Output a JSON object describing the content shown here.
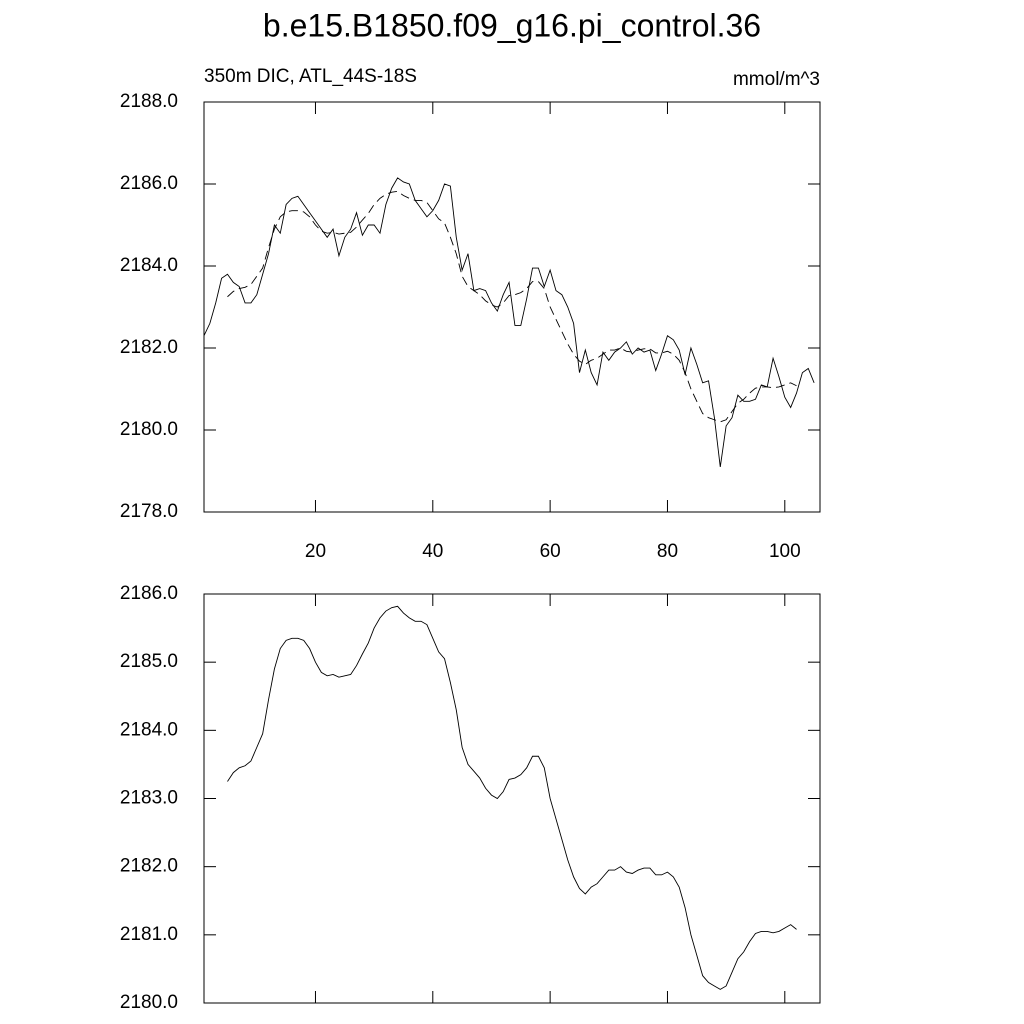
{
  "chart_data": [
    {
      "type": "line",
      "title": "b.e15.B1850.f09_g16.pi_control.36",
      "subtitle": "350m DIC, ATL_44S-18S",
      "units": "mmol/m^3",
      "xlim": [
        1,
        106
      ],
      "xticks": [
        20,
        40,
        60,
        80,
        100
      ],
      "xtick_labels_visible": true,
      "ylim": [
        2178,
        2188
      ],
      "yticks": [
        {
          "value": 2178,
          "label": "2178.0"
        },
        {
          "value": 2180,
          "label": "2180.0"
        },
        {
          "value": 2182,
          "label": "2182.0"
        },
        {
          "value": 2184,
          "label": "2184.0"
        },
        {
          "value": 2186,
          "label": "2186.0"
        },
        {
          "value": 2188,
          "label": "2188.0"
        }
      ],
      "series": [
        {
          "color": "#000000",
          "line_style": "solid",
          "x": [
            1,
            2,
            3,
            4,
            5,
            6,
            7,
            8,
            9,
            10,
            11,
            12,
            13,
            14,
            15,
            16,
            17,
            18,
            19,
            20,
            21,
            22,
            23,
            24,
            25,
            26,
            27,
            28,
            29,
            30,
            31,
            32,
            33,
            34,
            35,
            36,
            37,
            38,
            39,
            40,
            41,
            42,
            43,
            44,
            45,
            46,
            47,
            48,
            49,
            50,
            51,
            52,
            53,
            54,
            55,
            56,
            57,
            58,
            59,
            60,
            61,
            62,
            63,
            64,
            65,
            66,
            67,
            68,
            69,
            70,
            71,
            72,
            73,
            74,
            75,
            76,
            77,
            78,
            79,
            80,
            81,
            82,
            83,
            84,
            85,
            86,
            87,
            88,
            89,
            90,
            91,
            92,
            93,
            94,
            95,
            96,
            97,
            98,
            99,
            100,
            101,
            102,
            103,
            104,
            105
          ],
          "values": [
            2182.3,
            2182.6,
            2183.1,
            2183.7,
            2183.8,
            2183.6,
            2183.5,
            2183.1,
            2183.1,
            2183.3,
            2183.8,
            2184.3,
            2185.0,
            2184.8,
            2185.5,
            2185.65,
            2185.7,
            2185.5,
            2185.3,
            2185.1,
            2184.9,
            2184.7,
            2184.9,
            2184.25,
            2184.7,
            2184.9,
            2185.3,
            2184.75,
            2185.0,
            2185.0,
            2184.8,
            2185.5,
            2185.9,
            2186.15,
            2186.05,
            2186.0,
            2185.6,
            2185.4,
            2185.2,
            2185.35,
            2185.6,
            2186.0,
            2185.95,
            2184.7,
            2183.9,
            2184.3,
            2183.4,
            2183.45,
            2183.4,
            2183.1,
            2182.9,
            2183.3,
            2183.6,
            2182.55,
            2182.55,
            2183.2,
            2183.95,
            2183.95,
            2183.5,
            2183.9,
            2183.4,
            2183.3,
            2183.0,
            2182.6,
            2181.4,
            2181.95,
            2181.4,
            2181.1,
            2181.9,
            2181.7,
            2181.9,
            2182.0,
            2182.15,
            2181.85,
            2182.0,
            2181.9,
            2181.95,
            2181.45,
            2181.85,
            2182.3,
            2182.2,
            2181.95,
            2181.35,
            2182.0,
            2181.6,
            2181.15,
            2181.2,
            2180.3,
            2179.1,
            2180.1,
            2180.3,
            2180.85,
            2180.7,
            2180.7,
            2180.75,
            2181.1,
            2181.05,
            2181.75,
            2181.3,
            2180.8,
            2180.55,
            2180.9,
            2181.4,
            2181.5,
            2181.15
          ]
        },
        {
          "color": "#000000",
          "line_style": "dashed",
          "x": [
            5,
            6,
            7,
            8,
            9,
            10,
            11,
            12,
            13,
            14,
            15,
            16,
            17,
            18,
            19,
            20,
            21,
            22,
            23,
            24,
            25,
            26,
            27,
            28,
            29,
            30,
            31,
            32,
            33,
            34,
            35,
            36,
            37,
            38,
            39,
            40,
            41,
            42,
            43,
            44,
            45,
            46,
            47,
            48,
            49,
            50,
            51,
            52,
            53,
            54,
            55,
            56,
            57,
            58,
            59,
            60,
            61,
            62,
            63,
            64,
            65,
            66,
            67,
            68,
            69,
            70,
            71,
            72,
            73,
            74,
            75,
            76,
            77,
            78,
            79,
            80,
            81,
            82,
            83,
            84,
            85,
            86,
            87,
            88,
            89,
            90,
            91,
            92,
            93,
            94,
            95,
            96,
            97,
            98,
            99,
            100,
            101,
            102
          ],
          "values": [
            2183.25,
            2183.38,
            2183.45,
            2183.48,
            2183.55,
            2183.75,
            2183.95,
            2184.45,
            2184.9,
            2185.2,
            2185.32,
            2185.35,
            2185.35,
            2185.32,
            2185.2,
            2185.0,
            2184.85,
            2184.8,
            2184.82,
            2184.78,
            2184.8,
            2184.82,
            2184.95,
            2185.12,
            2185.28,
            2185.5,
            2185.65,
            2185.75,
            2185.8,
            2185.82,
            2185.72,
            2185.65,
            2185.6,
            2185.6,
            2185.55,
            2185.35,
            2185.15,
            2185.05,
            2184.7,
            2184.3,
            2183.75,
            2183.5,
            2183.4,
            2183.3,
            2183.15,
            2183.05,
            2183.0,
            2183.1,
            2183.28,
            2183.3,
            2183.35,
            2183.45,
            2183.62,
            2183.62,
            2183.45,
            2183.0,
            2182.7,
            2182.4,
            2182.1,
            2181.85,
            2181.68,
            2181.6,
            2181.7,
            2181.75,
            2181.85,
            2181.95,
            2181.95,
            2182.0,
            2181.92,
            2181.9,
            2181.95,
            2181.98,
            2181.98,
            2181.88,
            2181.88,
            2181.92,
            2181.85,
            2181.7,
            2181.4,
            2181.0,
            2180.7,
            2180.4,
            2180.3,
            2180.25,
            2180.2,
            2180.25,
            2180.45,
            2180.65,
            2180.75,
            2180.9,
            2181.02,
            2181.05,
            2181.05,
            2181.03,
            2181.05,
            2181.1,
            2181.15,
            2181.08
          ]
        }
      ]
    },
    {
      "type": "line",
      "xlim": [
        1,
        106
      ],
      "xticks": [
        20,
        40,
        60,
        80,
        100
      ],
      "xtick_labels_visible": false,
      "ylim": [
        2180,
        2186
      ],
      "yticks": [
        {
          "value": 2180,
          "label": "2180.0"
        },
        {
          "value": 2181,
          "label": "2181.0"
        },
        {
          "value": 2182,
          "label": "2182.0"
        },
        {
          "value": 2183,
          "label": "2183.0"
        },
        {
          "value": 2184,
          "label": "2184.0"
        },
        {
          "value": 2185,
          "label": "2185.0"
        },
        {
          "value": 2186,
          "label": "2186.0"
        }
      ],
      "series": [
        {
          "color": "#000000",
          "line_style": "solid",
          "x": [
            5,
            6,
            7,
            8,
            9,
            10,
            11,
            12,
            13,
            14,
            15,
            16,
            17,
            18,
            19,
            20,
            21,
            22,
            23,
            24,
            25,
            26,
            27,
            28,
            29,
            30,
            31,
            32,
            33,
            34,
            35,
            36,
            37,
            38,
            39,
            40,
            41,
            42,
            43,
            44,
            45,
            46,
            47,
            48,
            49,
            50,
            51,
            52,
            53,
            54,
            55,
            56,
            57,
            58,
            59,
            60,
            61,
            62,
            63,
            64,
            65,
            66,
            67,
            68,
            69,
            70,
            71,
            72,
            73,
            74,
            75,
            76,
            77,
            78,
            79,
            80,
            81,
            82,
            83,
            84,
            85,
            86,
            87,
            88,
            89,
            90,
            91,
            92,
            93,
            94,
            95,
            96,
            97,
            98,
            99,
            100,
            101,
            102
          ],
          "values": [
            2183.25,
            2183.38,
            2183.45,
            2183.48,
            2183.55,
            2183.75,
            2183.95,
            2184.45,
            2184.9,
            2185.2,
            2185.32,
            2185.35,
            2185.35,
            2185.32,
            2185.2,
            2185.0,
            2184.85,
            2184.8,
            2184.82,
            2184.78,
            2184.8,
            2184.82,
            2184.95,
            2185.12,
            2185.28,
            2185.5,
            2185.65,
            2185.75,
            2185.8,
            2185.82,
            2185.72,
            2185.65,
            2185.6,
            2185.6,
            2185.55,
            2185.35,
            2185.15,
            2185.05,
            2184.7,
            2184.3,
            2183.75,
            2183.5,
            2183.4,
            2183.3,
            2183.15,
            2183.05,
            2183.0,
            2183.1,
            2183.28,
            2183.3,
            2183.35,
            2183.45,
            2183.62,
            2183.62,
            2183.45,
            2183.0,
            2182.7,
            2182.4,
            2182.1,
            2181.85,
            2181.68,
            2181.6,
            2181.7,
            2181.75,
            2181.85,
            2181.95,
            2181.95,
            2182.0,
            2181.92,
            2181.9,
            2181.95,
            2181.98,
            2181.98,
            2181.88,
            2181.88,
            2181.92,
            2181.85,
            2181.7,
            2181.4,
            2181.0,
            2180.7,
            2180.4,
            2180.3,
            2180.25,
            2180.2,
            2180.25,
            2180.45,
            2180.65,
            2180.75,
            2180.9,
            2181.02,
            2181.05,
            2181.05,
            2181.03,
            2181.05,
            2181.1,
            2181.15,
            2181.08
          ]
        }
      ]
    }
  ]
}
